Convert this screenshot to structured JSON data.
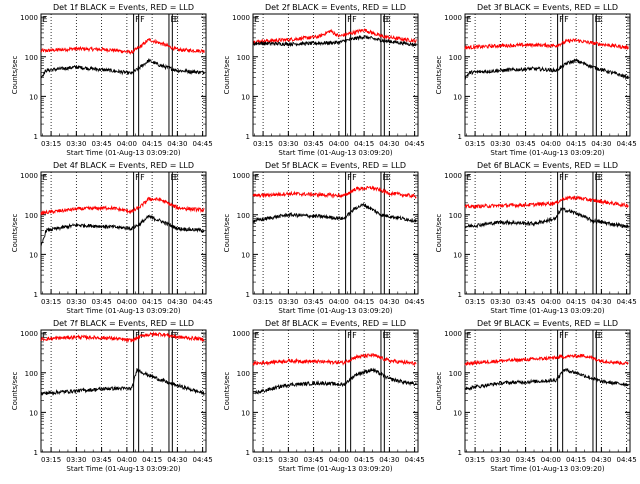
{
  "colors": {
    "events": "#000000",
    "lld": "#ff0000",
    "axis": "#000000",
    "background": "#ffffff"
  },
  "figure": {
    "ylabel": "Counts/sec",
    "xlabel": "Start Time (01-Aug-13 03:09:20)"
  },
  "chart_data": [
    {
      "type": "line",
      "title": "Det 1f BLACK = Events, RED = LLD",
      "xlabel": "Start Time (01-Aug-13 03:09:20)",
      "ylabel": "Counts/sec",
      "x_ticks": [
        "03:15",
        "03:30",
        "03:45",
        "04:00",
        "04:15",
        "04:30",
        "04:45"
      ],
      "x_range": [
        "03:09",
        "04:47"
      ],
      "y_scale": "log",
      "y_ticks": [
        "1",
        "10",
        "100",
        "1000"
      ],
      "ylim": [
        1,
        1200
      ],
      "markers": {
        "F": [
          "04:04",
          "04:07"
        ],
        "E": [
          "04:25",
          "04:27"
        ]
      },
      "series": [
        {
          "color": "#ff0000",
          "points": [
            [
              "03:09",
              140
            ],
            [
              "03:30",
              160
            ],
            [
              "03:50",
              150
            ],
            [
              "04:03",
              130
            ],
            [
              "04:08",
              180
            ],
            [
              "04:13",
              270
            ],
            [
              "04:20",
              220
            ],
            [
              "04:30",
              150
            ],
            [
              "04:46",
              140
            ]
          ]
        },
        {
          "color": "#000000",
          "points": [
            [
              "03:09",
              30
            ],
            [
              "03:12",
              45
            ],
            [
              "03:30",
              55
            ],
            [
              "03:50",
              45
            ],
            [
              "04:03",
              38
            ],
            [
              "04:08",
              55
            ],
            [
              "04:13",
              80
            ],
            [
              "04:20",
              60
            ],
            [
              "04:30",
              45
            ],
            [
              "04:46",
              40
            ]
          ]
        }
      ]
    },
    {
      "type": "line",
      "title": "Det 2f BLACK = Events, RED = LLD",
      "xlabel": "Start Time (01-Aug-13 03:09:20)",
      "ylabel": "Counts/sec",
      "x_ticks": [
        "03:15",
        "03:30",
        "03:45",
        "04:00",
        "04:15",
        "04:30",
        "04:45"
      ],
      "x_range": [
        "03:09",
        "04:47"
      ],
      "y_scale": "log",
      "y_ticks": [
        "1",
        "10",
        "100",
        "1000"
      ],
      "ylim": [
        1,
        1200
      ],
      "markers": {
        "F": [
          "04:04",
          "04:07"
        ],
        "E": [
          "04:25",
          "04:27"
        ]
      },
      "series": [
        {
          "color": "#ff0000",
          "points": [
            [
              "03:09",
              240
            ],
            [
              "03:30",
              270
            ],
            [
              "03:48",
              320
            ],
            [
              "03:55",
              450
            ],
            [
              "04:00",
              330
            ],
            [
              "04:08",
              400
            ],
            [
              "04:15",
              480
            ],
            [
              "04:25",
              330
            ],
            [
              "04:46",
              250
            ]
          ]
        },
        {
          "color": "#000000",
          "points": [
            [
              "03:09",
              220
            ],
            [
              "03:30",
              210
            ],
            [
              "03:48",
              220
            ],
            [
              "04:00",
              230
            ],
            [
              "04:08",
              280
            ],
            [
              "04:15",
              320
            ],
            [
              "04:25",
              260
            ],
            [
              "04:46",
              200
            ]
          ]
        }
      ]
    },
    {
      "type": "line",
      "title": "Det 3f BLACK = Events, RED = LLD",
      "xlabel": "Start Time (01-Aug-13 03:09:20)",
      "ylabel": "Counts/sec",
      "x_ticks": [
        "03:15",
        "03:30",
        "03:45",
        "04:00",
        "04:15",
        "04:30",
        "04:45"
      ],
      "x_range": [
        "03:09",
        "04:47"
      ],
      "y_scale": "log",
      "y_ticks": [
        "1",
        "10",
        "100",
        "1000"
      ],
      "ylim": [
        1,
        1200
      ],
      "markers": {
        "F": [
          "04:04",
          "04:07"
        ],
        "E": [
          "04:25",
          "04:27"
        ]
      },
      "series": [
        {
          "color": "#ff0000",
          "points": [
            [
              "03:09",
              170
            ],
            [
              "03:30",
              190
            ],
            [
              "03:50",
              200
            ],
            [
              "04:03",
              190
            ],
            [
              "04:10",
              250
            ],
            [
              "04:15",
              260
            ],
            [
              "04:25",
              220
            ],
            [
              "04:46",
              170
            ]
          ]
        },
        {
          "color": "#000000",
          "points": [
            [
              "03:09",
              30
            ],
            [
              "03:12",
              40
            ],
            [
              "03:30",
              45
            ],
            [
              "03:50",
              50
            ],
            [
              "04:03",
              45
            ],
            [
              "04:10",
              70
            ],
            [
              "04:15",
              80
            ],
            [
              "04:25",
              55
            ],
            [
              "04:46",
              30
            ]
          ]
        }
      ]
    },
    {
      "type": "line",
      "title": "Det 4f BLACK = Events, RED = LLD",
      "xlabel": "Start Time (01-Aug-13 03:09:20)",
      "ylabel": "Counts/sec",
      "x_ticks": [
        "03:15",
        "03:30",
        "03:45",
        "04:00",
        "04:15",
        "04:30",
        "04:45"
      ],
      "x_range": [
        "03:09",
        "04:47"
      ],
      "y_scale": "log",
      "y_ticks": [
        "1",
        "10",
        "100",
        "1000"
      ],
      "ylim": [
        1,
        1200
      ],
      "markers": {
        "F": [
          "04:04",
          "04:07"
        ],
        "E": [
          "04:25",
          "04:27"
        ]
      },
      "series": [
        {
          "color": "#ff0000",
          "points": [
            [
              "03:09",
              110
            ],
            [
              "03:30",
              140
            ],
            [
              "03:50",
              150
            ],
            [
              "04:03",
              120
            ],
            [
              "04:08",
              160
            ],
            [
              "04:13",
              250
            ],
            [
              "04:20",
              240
            ],
            [
              "04:30",
              150
            ],
            [
              "04:46",
              130
            ]
          ]
        },
        {
          "color": "#000000",
          "points": [
            [
              "03:09",
              15
            ],
            [
              "03:12",
              40
            ],
            [
              "03:30",
              55
            ],
            [
              "03:50",
              50
            ],
            [
              "04:03",
              45
            ],
            [
              "04:08",
              60
            ],
            [
              "04:13",
              90
            ],
            [
              "04:20",
              70
            ],
            [
              "04:30",
              45
            ],
            [
              "04:46",
              40
            ]
          ]
        }
      ]
    },
    {
      "type": "line",
      "title": "Det 5f BLACK = Events, RED = LLD",
      "xlabel": "Start Time (01-Aug-13 03:09:20)",
      "ylabel": "Counts/sec",
      "x_ticks": [
        "03:15",
        "03:30",
        "03:45",
        "04:00",
        "04:15",
        "04:30",
        "04:45"
      ],
      "x_range": [
        "03:09",
        "04:47"
      ],
      "y_scale": "log",
      "y_ticks": [
        "1",
        "10",
        "100",
        "1000"
      ],
      "ylim": [
        1,
        1200
      ],
      "markers": {
        "F": [
          "04:04",
          "04:07"
        ],
        "E": [
          "04:25",
          "04:27"
        ]
      },
      "series": [
        {
          "color": "#ff0000",
          "points": [
            [
              "03:09",
              300
            ],
            [
              "03:30",
              340
            ],
            [
              "03:50",
              320
            ],
            [
              "04:03",
              300
            ],
            [
              "04:10",
              450
            ],
            [
              "04:20",
              480
            ],
            [
              "04:30",
              350
            ],
            [
              "04:46",
              290
            ]
          ]
        },
        {
          "color": "#000000",
          "points": [
            [
              "03:09",
              70
            ],
            [
              "03:30",
              100
            ],
            [
              "03:50",
              90
            ],
            [
              "04:03",
              80
            ],
            [
              "04:10",
              150
            ],
            [
              "04:15",
              180
            ],
            [
              "04:25",
              100
            ],
            [
              "04:46",
              70
            ]
          ]
        }
      ]
    },
    {
      "type": "line",
      "title": "Det 6f BLACK = Events, RED = LLD",
      "xlabel": "Start Time (01-Aug-13 03:09:20)",
      "ylabel": "Counts/sec",
      "x_ticks": [
        "03:15",
        "03:30",
        "03:45",
        "04:00",
        "04:15",
        "04:30",
        "04:45"
      ],
      "x_range": [
        "03:09",
        "04:47"
      ],
      "y_scale": "log",
      "y_ticks": [
        "1",
        "10",
        "100",
        "1000"
      ],
      "ylim": [
        1,
        1200
      ],
      "markers": {
        "F": [
          "04:04",
          "04:07"
        ],
        "E": [
          "04:25",
          "04:27"
        ]
      },
      "series": [
        {
          "color": "#ff0000",
          "points": [
            [
              "03:09",
              160
            ],
            [
              "03:30",
              170
            ],
            [
              "03:50",
              180
            ],
            [
              "04:03",
              200
            ],
            [
              "04:08",
              260
            ],
            [
              "04:15",
              270
            ],
            [
              "04:25",
              230
            ],
            [
              "04:46",
              170
            ]
          ]
        },
        {
          "color": "#000000",
          "points": [
            [
              "03:09",
              50
            ],
            [
              "03:30",
              65
            ],
            [
              "03:50",
              60
            ],
            [
              "04:03",
              80
            ],
            [
              "04:06",
              140
            ],
            [
              "04:15",
              110
            ],
            [
              "04:25",
              70
            ],
            [
              "04:46",
              50
            ]
          ]
        }
      ]
    },
    {
      "type": "line",
      "title": "Det 7f BLACK = Events, RED = LLD",
      "xlabel": "Start Time (01-Aug-13 03:09:20)",
      "ylabel": "Counts/sec",
      "x_ticks": [
        "03:15",
        "03:30",
        "03:45",
        "04:00",
        "04:15",
        "04:30",
        "04:45"
      ],
      "x_range": [
        "03:09",
        "04:47"
      ],
      "y_scale": "log",
      "y_ticks": [
        "1",
        "10",
        "100",
        "1000"
      ],
      "ylim": [
        1,
        1200
      ],
      "markers": {
        "F": [
          "04:04",
          "04:07"
        ],
        "E": [
          "04:25",
          "04:27"
        ]
      },
      "series": [
        {
          "color": "#ff0000",
          "points": [
            [
              "03:09",
              700
            ],
            [
              "03:30",
              800
            ],
            [
              "03:50",
              750
            ],
            [
              "04:03",
              650
            ],
            [
              "04:10",
              900
            ],
            [
              "04:20",
              950
            ],
            [
              "04:30",
              800
            ],
            [
              "04:46",
              700
            ]
          ]
        },
        {
          "color": "#000000",
          "points": [
            [
              "03:09",
              30
            ],
            [
              "03:30",
              35
            ],
            [
              "03:50",
              40
            ],
            [
              "04:03",
              40
            ],
            [
              "04:06",
              120
            ],
            [
              "04:12",
              90
            ],
            [
              "04:25",
              55
            ],
            [
              "04:46",
              30
            ]
          ]
        }
      ]
    },
    {
      "type": "line",
      "title": "Det 8f BLACK = Events, RED = LLD",
      "xlabel": "Start Time (01-Aug-13 03:09:20)",
      "ylabel": "Counts/sec",
      "x_ticks": [
        "03:15",
        "03:30",
        "03:45",
        "04:00",
        "04:15",
        "04:30",
        "04:45"
      ],
      "x_range": [
        "03:09",
        "04:47"
      ],
      "y_scale": "log",
      "y_ticks": [
        "1",
        "10",
        "100",
        "1000"
      ],
      "ylim": [
        1,
        1200
      ],
      "markers": {
        "F": [
          "04:04",
          "04:07"
        ],
        "E": [
          "04:25",
          "04:27"
        ]
      },
      "series": [
        {
          "color": "#ff0000",
          "points": [
            [
              "03:09",
              170
            ],
            [
              "03:30",
              200
            ],
            [
              "03:50",
              190
            ],
            [
              "04:03",
              180
            ],
            [
              "04:10",
              250
            ],
            [
              "04:20",
              280
            ],
            [
              "04:30",
              200
            ],
            [
              "04:46",
              170
            ]
          ]
        },
        {
          "color": "#000000",
          "points": [
            [
              "03:09",
              30
            ],
            [
              "03:30",
              50
            ],
            [
              "03:50",
              55
            ],
            [
              "04:03",
              50
            ],
            [
              "04:10",
              90
            ],
            [
              "04:20",
              120
            ],
            [
              "04:30",
              70
            ],
            [
              "04:46",
              50
            ]
          ]
        }
      ]
    },
    {
      "type": "line",
      "title": "Det 9f BLACK = Events, RED = LLD",
      "xlabel": "Start Time (01-Aug-13 03:09:20)",
      "ylabel": "Counts/sec",
      "x_ticks": [
        "03:15",
        "03:30",
        "03:45",
        "04:00",
        "04:15",
        "04:30",
        "04:45"
      ],
      "x_range": [
        "03:09",
        "04:47"
      ],
      "y_scale": "log",
      "y_ticks": [
        "1",
        "10",
        "100",
        "1000"
      ],
      "ylim": [
        1,
        1200
      ],
      "markers": {
        "F": [
          "04:04",
          "04:07"
        ],
        "E": [
          "04:25",
          "04:27"
        ]
      },
      "series": [
        {
          "color": "#ff0000",
          "points": [
            [
              "03:09",
              170
            ],
            [
              "03:30",
              200
            ],
            [
              "03:50",
              220
            ],
            [
              "04:03",
              240
            ],
            [
              "04:10",
              260
            ],
            [
              "04:20",
              270
            ],
            [
              "04:30",
              200
            ],
            [
              "04:46",
              170
            ]
          ]
        },
        {
          "color": "#000000",
          "points": [
            [
              "03:09",
              40
            ],
            [
              "03:30",
              55
            ],
            [
              "03:50",
              60
            ],
            [
              "04:03",
              65
            ],
            [
              "04:08",
              120
            ],
            [
              "04:15",
              100
            ],
            [
              "04:30",
              60
            ],
            [
              "04:46",
              50
            ]
          ]
        }
      ]
    }
  ]
}
